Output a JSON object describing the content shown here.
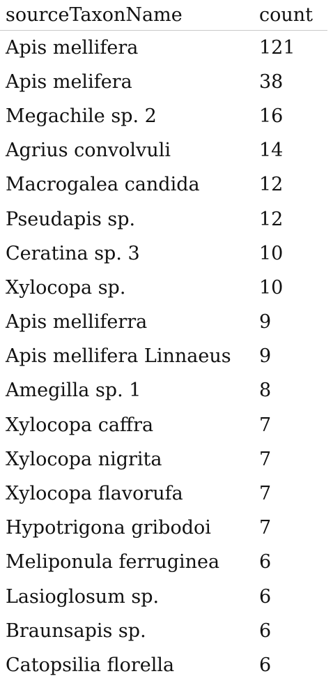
{
  "table": {
    "columns": [
      "sourceTaxonName",
      "count"
    ],
    "rows": [
      {
        "name": "Apis mellifera",
        "count": "121"
      },
      {
        "name": "Apis melifera",
        "count": "38"
      },
      {
        "name": "Megachile sp. 2",
        "count": "16"
      },
      {
        "name": "Agrius convolvuli",
        "count": "14"
      },
      {
        "name": "Macrogalea candida",
        "count": "12"
      },
      {
        "name": "Pseudapis sp.",
        "count": "12"
      },
      {
        "name": "Ceratina sp. 3",
        "count": "10"
      },
      {
        "name": "Xylocopa sp.",
        "count": "10"
      },
      {
        "name": "Apis melliferra",
        "count": "9"
      },
      {
        "name": "Apis mellifera Linnaeus",
        "count": "9"
      },
      {
        "name": "Amegilla sp. 1",
        "count": "8"
      },
      {
        "name": "Xylocopa caffra",
        "count": "7"
      },
      {
        "name": "Xylocopa nigrita",
        "count": "7"
      },
      {
        "name": "Xylocopa flavorufa",
        "count": "7"
      },
      {
        "name": "Hypotrigona gribodoi",
        "count": "7"
      },
      {
        "name": "Meliponula ferruginea",
        "count": "6"
      },
      {
        "name": "Lasioglosum sp.",
        "count": "6"
      },
      {
        "name": "Braunsapis sp.",
        "count": "6"
      },
      {
        "name": "Catopsilia florella",
        "count": "6"
      }
    ]
  }
}
